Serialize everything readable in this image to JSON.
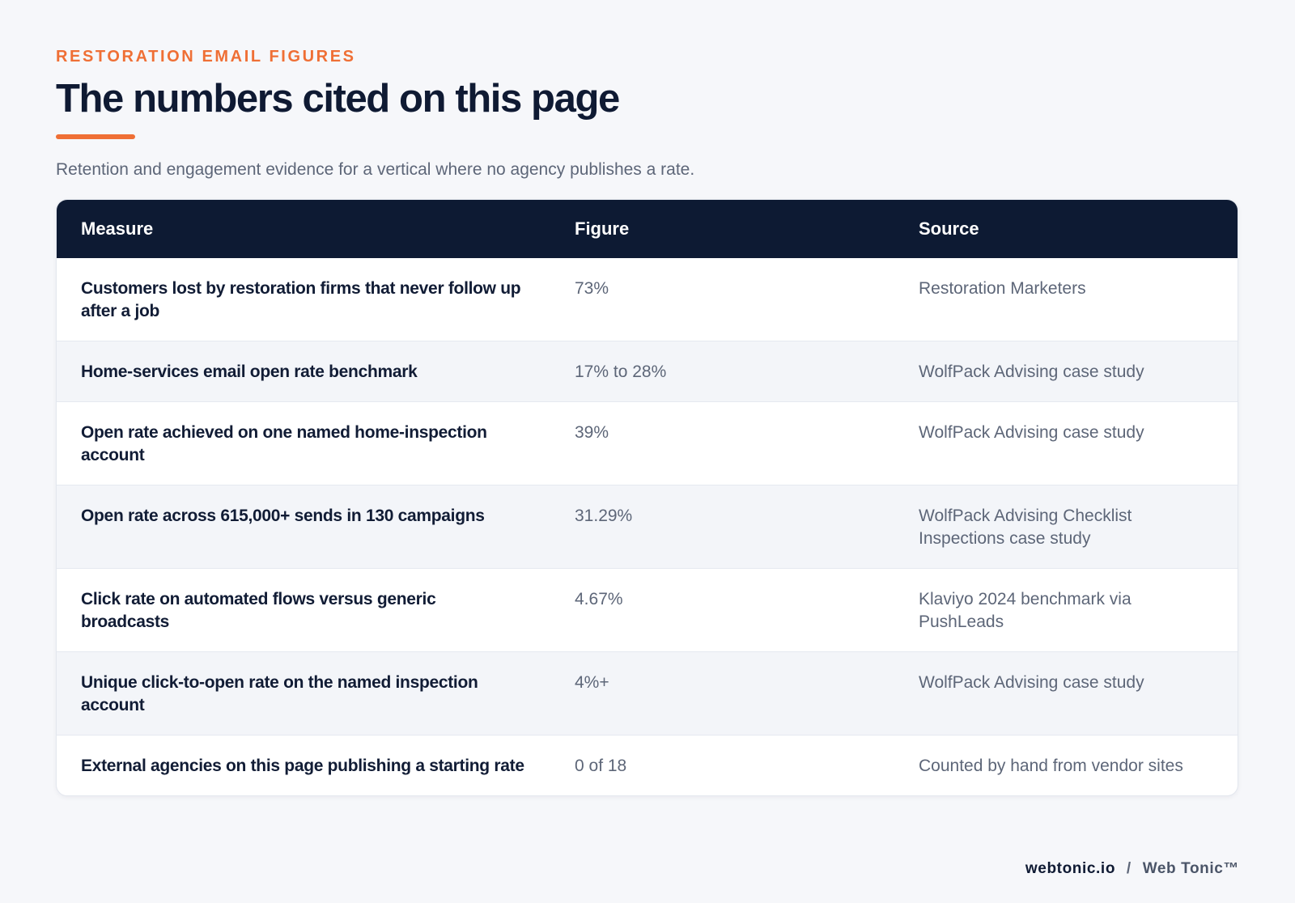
{
  "header": {
    "eyebrow": "RESTORATION EMAIL FIGURES",
    "title": "The numbers cited on this page",
    "subtitle": "Retention and engagement evidence for a vertical where no agency publishes a rate."
  },
  "table": {
    "columns": [
      "Measure",
      "Figure",
      "Source"
    ],
    "rows": [
      {
        "measure": "Customers lost by restoration firms that never follow up after a job",
        "figure": "73%",
        "source": "Restoration Marketers"
      },
      {
        "measure": "Home-services email open rate benchmark",
        "figure": "17% to 28%",
        "source": "WolfPack Advising case study"
      },
      {
        "measure": "Open rate achieved on one named home-inspection account",
        "figure": "39%",
        "source": "WolfPack Advising case study"
      },
      {
        "measure": "Open rate across 615,000+ sends in 130 campaigns",
        "figure": "31.29%",
        "source": "WolfPack Advising Checklist Inspections case study"
      },
      {
        "measure": "Click rate on automated flows versus generic broadcasts",
        "figure": "4.67%",
        "source": "Klaviyo 2024 benchmark via PushLeads"
      },
      {
        "measure": "Unique click-to-open rate on the named inspection account",
        "figure": "4%+",
        "source": "WolfPack Advising case study"
      },
      {
        "measure": "External agencies on this page publishing a starting rate",
        "figure": "0 of 18",
        "source": "Counted by hand from vendor sites"
      }
    ]
  },
  "footer": {
    "domain": "webtonic.io",
    "separator": "/",
    "brand": "Web Tonic™"
  },
  "colors": {
    "accent": "#ef6f35",
    "navy": "#0d1a33",
    "background": "#f6f7fa",
    "muted_text": "#5d6678"
  }
}
